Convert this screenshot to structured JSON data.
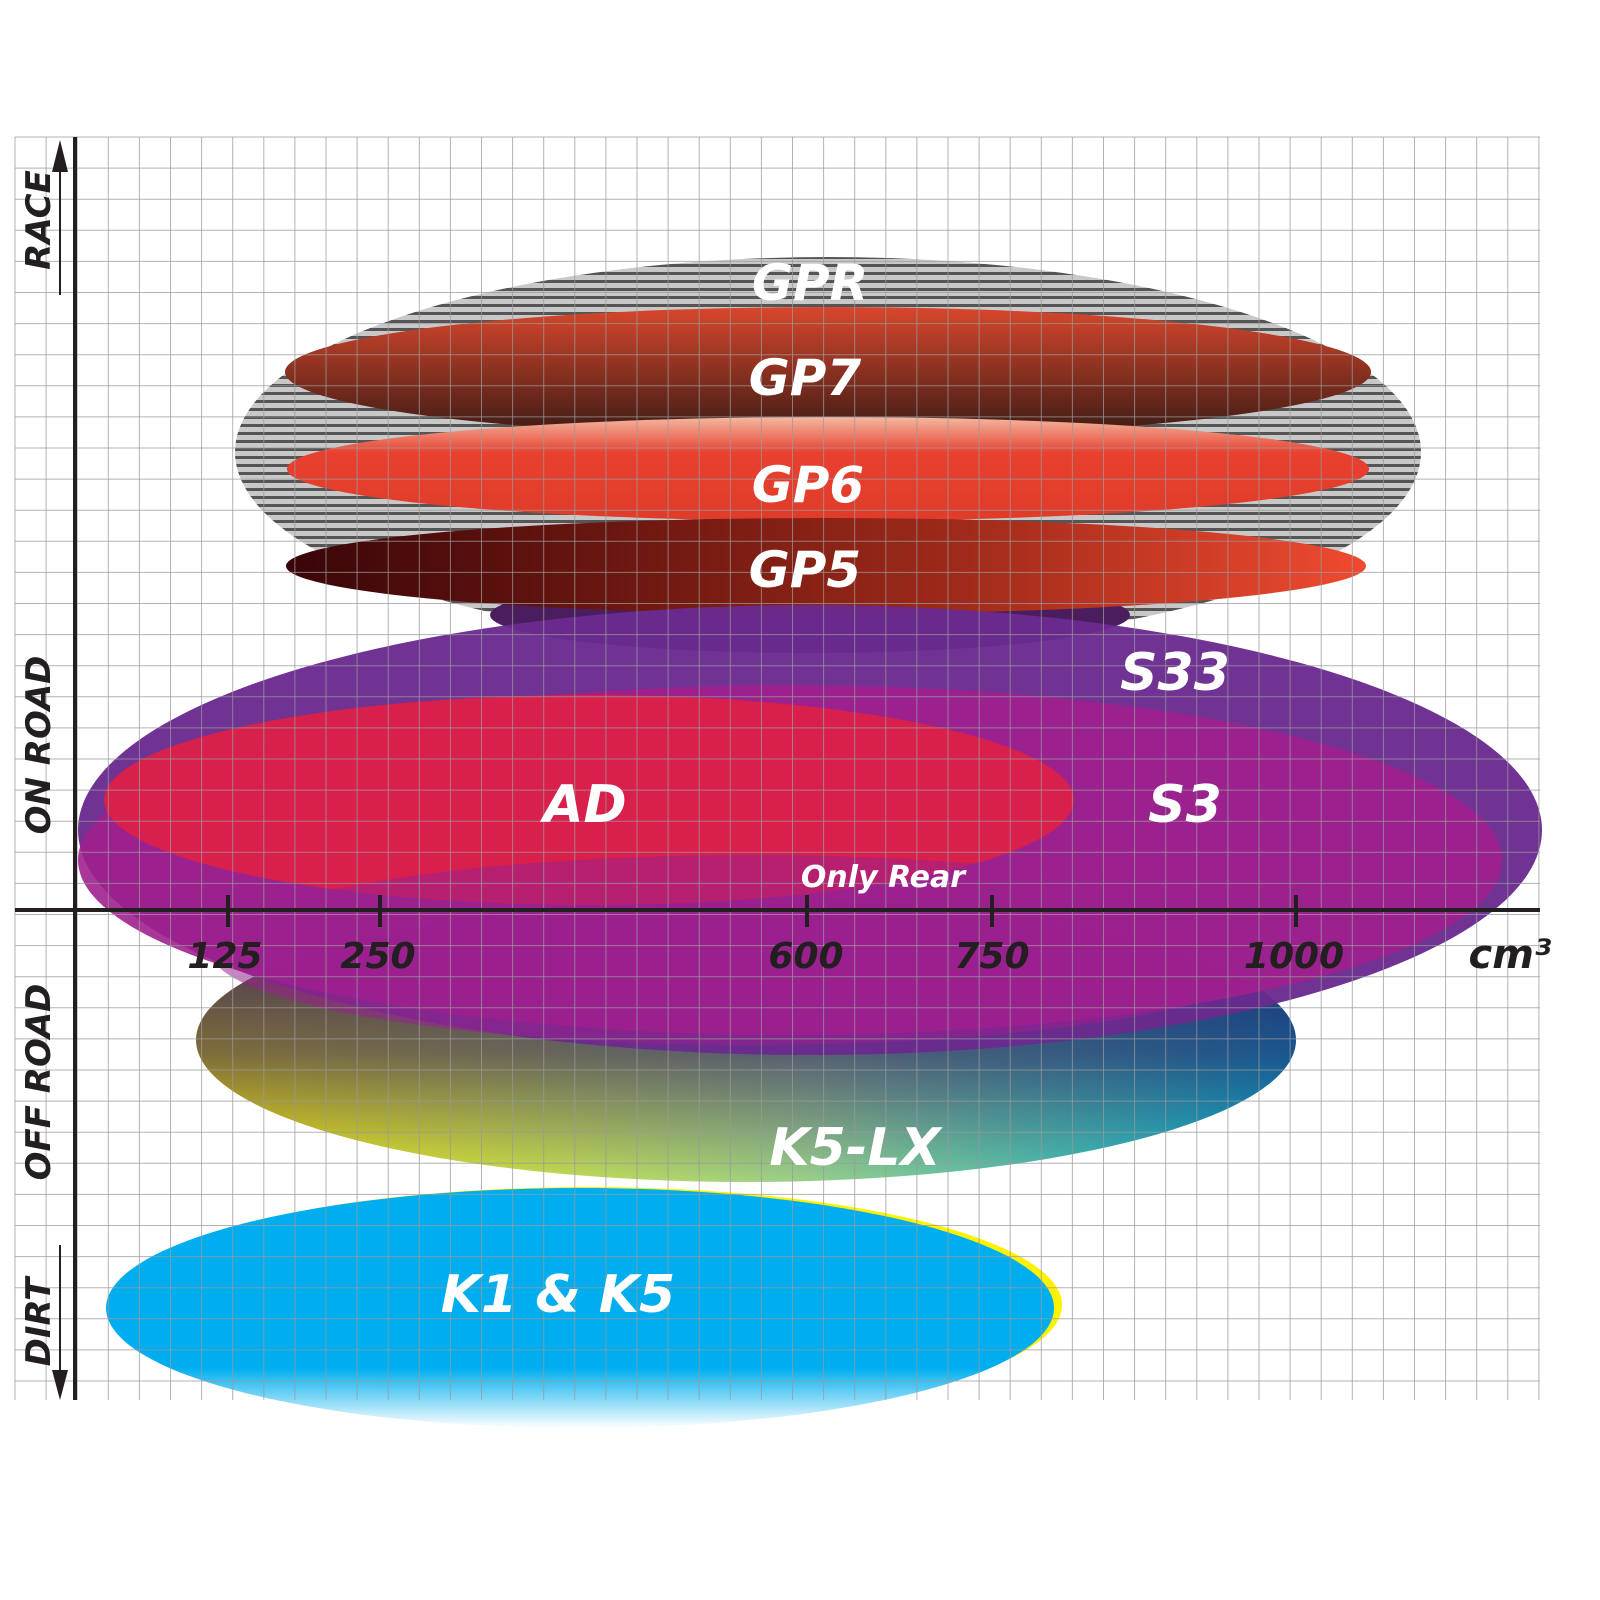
{
  "axes": {
    "y_labels": [
      "RACE",
      "ON ROAD",
      "OFF ROAD",
      "DIRT"
    ],
    "x_ticks": [
      "125",
      "250",
      "600",
      "750",
      "1000"
    ],
    "x_unit": "cm³"
  },
  "products": [
    {
      "id": "gpr",
      "label": "GPR",
      "color": "#9a9a9a"
    },
    {
      "id": "gp7",
      "label": "GP7",
      "color": "#8a3020"
    },
    {
      "id": "gp6",
      "label": "GP6",
      "color": "#e8402e"
    },
    {
      "id": "gp5",
      "label": "GP5",
      "color": "#7a1010"
    },
    {
      "id": "s33",
      "label": "S33",
      "color": "#6a2a8f"
    },
    {
      "id": "s3",
      "label": "S3",
      "color": "#a0208e"
    },
    {
      "id": "ad",
      "label": "AD",
      "color": "#dc2048"
    },
    {
      "id": "only_rear",
      "label": "Only Rear"
    },
    {
      "id": "k5lx",
      "label": "K5-LX",
      "color": "#00b8d4"
    },
    {
      "id": "k1k5",
      "label": "K1 & K5",
      "color": "#00aeef"
    }
  ]
}
